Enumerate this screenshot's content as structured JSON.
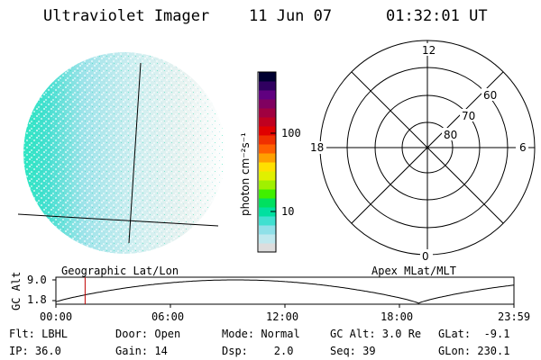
{
  "header": {
    "instrument": "Ultraviolet Imager",
    "date": "11 Jun 07",
    "time": "01:32:01 UT"
  },
  "colorbar": {
    "label": "photon cm⁻²s⁻¹",
    "ticks": [
      "100",
      "10"
    ],
    "colors": [
      "#dddddd",
      "#bfe8ee",
      "#8fe0e8",
      "#40e0d0",
      "#00e0a0",
      "#00e060",
      "#40f000",
      "#a0f000",
      "#e0f000",
      "#ffe000",
      "#ffa000",
      "#ff6000",
      "#f03000",
      "#e00000",
      "#c00020",
      "#a00040",
      "#800060",
      "#600080",
      "#300060",
      "#000030"
    ]
  },
  "polar": {
    "hour_labels": [
      "12",
      "18",
      "6",
      "0"
    ],
    "lat_labels": [
      "60",
      "70",
      "80"
    ]
  },
  "timeline": {
    "left_title": "Geographic Lat/Lon",
    "right_title": "Apex MLat/MLT",
    "axis_label": "GC Alt",
    "y_ticks": [
      "9.0",
      "1.8"
    ],
    "x_ticks": [
      "00:00",
      "06:00",
      "12:00",
      "18:00",
      "23:59"
    ],
    "marker_color": "#c00000",
    "current_time_hours": 1.53
  },
  "status": {
    "flt": "Flt: LBHL",
    "door": "Door: Open",
    "mode": "Mode: Normal",
    "gc_alt": "GC Alt: 3.0 Re",
    "glat": "GLat:  -9.1",
    "ip": "IP: 36.0",
    "gain": "Gain: 14",
    "dsp": "Dsp:    2.0",
    "seq": "Seq: 39",
    "glon": "GLon: 230.1"
  }
}
